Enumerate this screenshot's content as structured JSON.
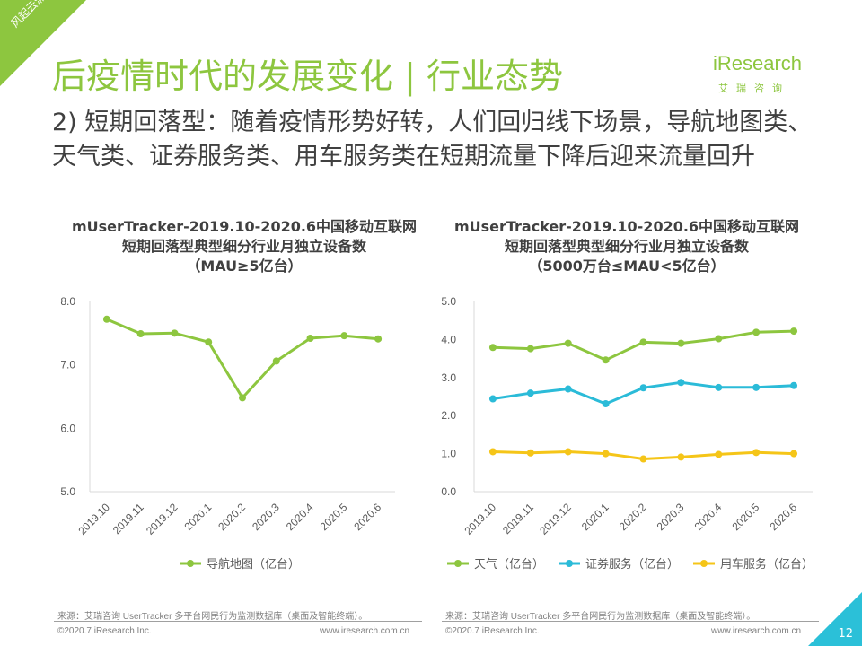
{
  "corner_label": "风起云涌",
  "title": "后疫情时代的发展变化 | 行业态势",
  "subtitle": "2) 短期回落型：随着疫情形势好转，人们回归线下场景，导航地图类、天气类、证券服务类、用车服务类在短期流量下降后迎来流量回升",
  "logo": {
    "main": "iResearch",
    "sub": "艾瑞咨询"
  },
  "colors": {
    "accent": "#8dc63f",
    "blue": "#2bbbd8",
    "yellow": "#f5c518"
  },
  "chart_data": [
    {
      "type": "line",
      "title_lines": [
        "mUserTracker-2019.10-2020.6中国移动互联网",
        "短期回落型典型细分行业月独立设备数",
        "（MAU≥5亿台）"
      ],
      "categories": [
        "2019.10",
        "2019.11",
        "2019.12",
        "2020.1",
        "2020.2",
        "2020.3",
        "2020.4",
        "2020.5",
        "2020.6"
      ],
      "ylim": [
        5.0,
        8.0
      ],
      "yticks": [
        "8.0",
        "7.0",
        "6.0",
        "5.0"
      ],
      "series": [
        {
          "name": "导航地图（亿台）",
          "color": "#8dc63f",
          "values": [
            7.72,
            7.49,
            7.5,
            7.36,
            6.48,
            7.06,
            7.42,
            7.46,
            7.41
          ]
        }
      ]
    },
    {
      "type": "line",
      "title_lines": [
        "mUserTracker-2019.10-2020.6中国移动互联网",
        "短期回落型典型细分行业月独立设备数",
        "（5000万台≤MAU<5亿台）"
      ],
      "categories": [
        "2019.10",
        "2019.11",
        "2019.12",
        "2020.1",
        "2020.2",
        "2020.3",
        "2020.4",
        "2020.5",
        "2020.6"
      ],
      "ylim": [
        0.0,
        5.0
      ],
      "yticks": [
        "5.0",
        "4.0",
        "3.0",
        "2.0",
        "1.0",
        "0.0"
      ],
      "series": [
        {
          "name": "天气（亿台）",
          "color": "#8dc63f",
          "values": [
            3.79,
            3.76,
            3.9,
            3.46,
            3.93,
            3.9,
            4.02,
            4.19,
            4.22
          ]
        },
        {
          "name": "证券服务（亿台）",
          "color": "#2bbbd8",
          "values": [
            2.44,
            2.59,
            2.7,
            2.31,
            2.73,
            2.87,
            2.74,
            2.74,
            2.79
          ]
        },
        {
          "name": "用车服务（亿台）",
          "color": "#f5c518",
          "values": [
            1.05,
            1.02,
            1.05,
            1.0,
            0.86,
            0.91,
            0.98,
            1.03,
            1.0
          ]
        }
      ]
    }
  ],
  "footer": {
    "source": "来源：艾瑞咨询 UserTracker 多平台网民行为监测数据库（桌面及智能终端）。",
    "copyright": "©2020.7 iResearch Inc.",
    "website": "www.iresearch.com.cn"
  },
  "page_number": "12"
}
